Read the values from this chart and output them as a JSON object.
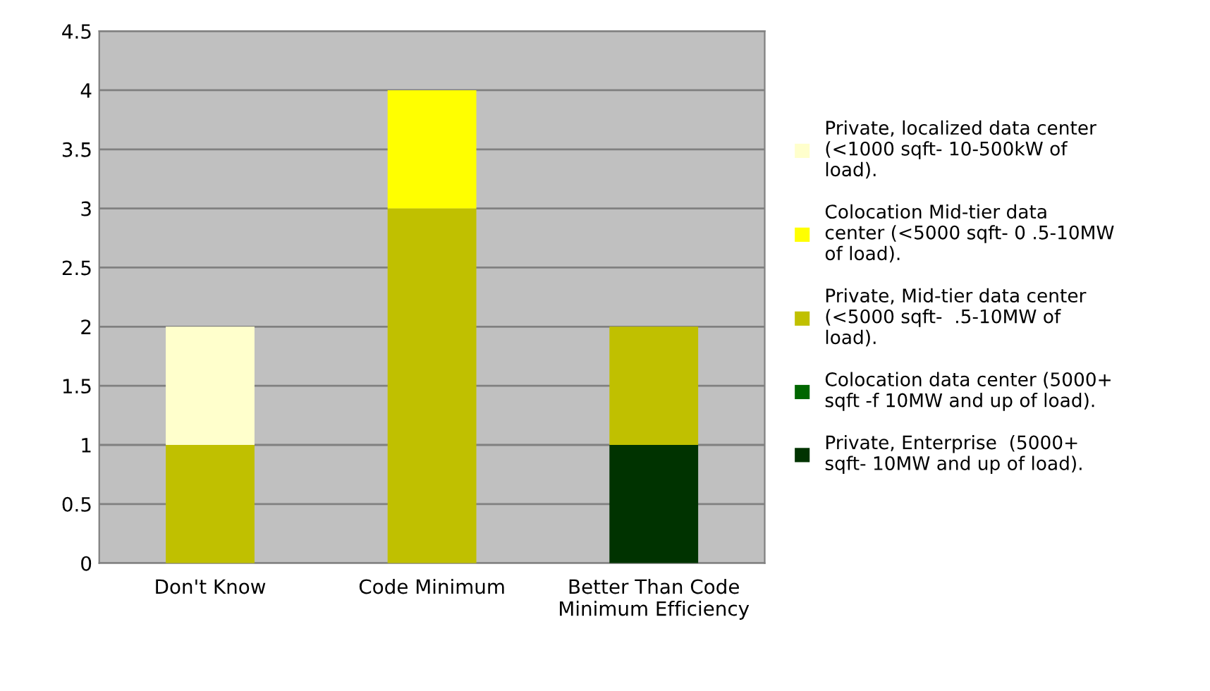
{
  "chart_data": {
    "type": "bar",
    "stacked": true,
    "categories": [
      "Don't Know",
      "Code Minimum",
      "Better Than Code Minimum Efficiency"
    ],
    "series": [
      {
        "name": "Private, Enterprise  (5000+ sqft- 10MW and up of load).",
        "color": "#003300",
        "values": [
          0,
          0,
          1
        ]
      },
      {
        "name": "Colocation data center (5000+ sqft -f 10MW and up of load).",
        "color": "#006600",
        "values": [
          0,
          0,
          0
        ]
      },
      {
        "name": "Private, Mid-tier data center (<5000 sqft-  .5-10MW of load).",
        "color": "#c0c000",
        "values": [
          1,
          3,
          1
        ]
      },
      {
        "name": "Colocation Mid-tier data center (<5000 sqft- 0 .5-10MW of load).",
        "color": "#ffff00",
        "values": [
          0,
          1,
          0
        ]
      },
      {
        "name": "Private, localized data center (<1000 sqft- 10-500kW of load).",
        "color": "#ffffcc",
        "values": [
          1,
          0,
          0
        ]
      }
    ],
    "ylim": [
      0,
      4.5
    ],
    "yticks": [
      0,
      0.5,
      1,
      1.5,
      2,
      2.5,
      3,
      3.5,
      4,
      4.5
    ],
    "grid": "y",
    "legend": "right"
  }
}
